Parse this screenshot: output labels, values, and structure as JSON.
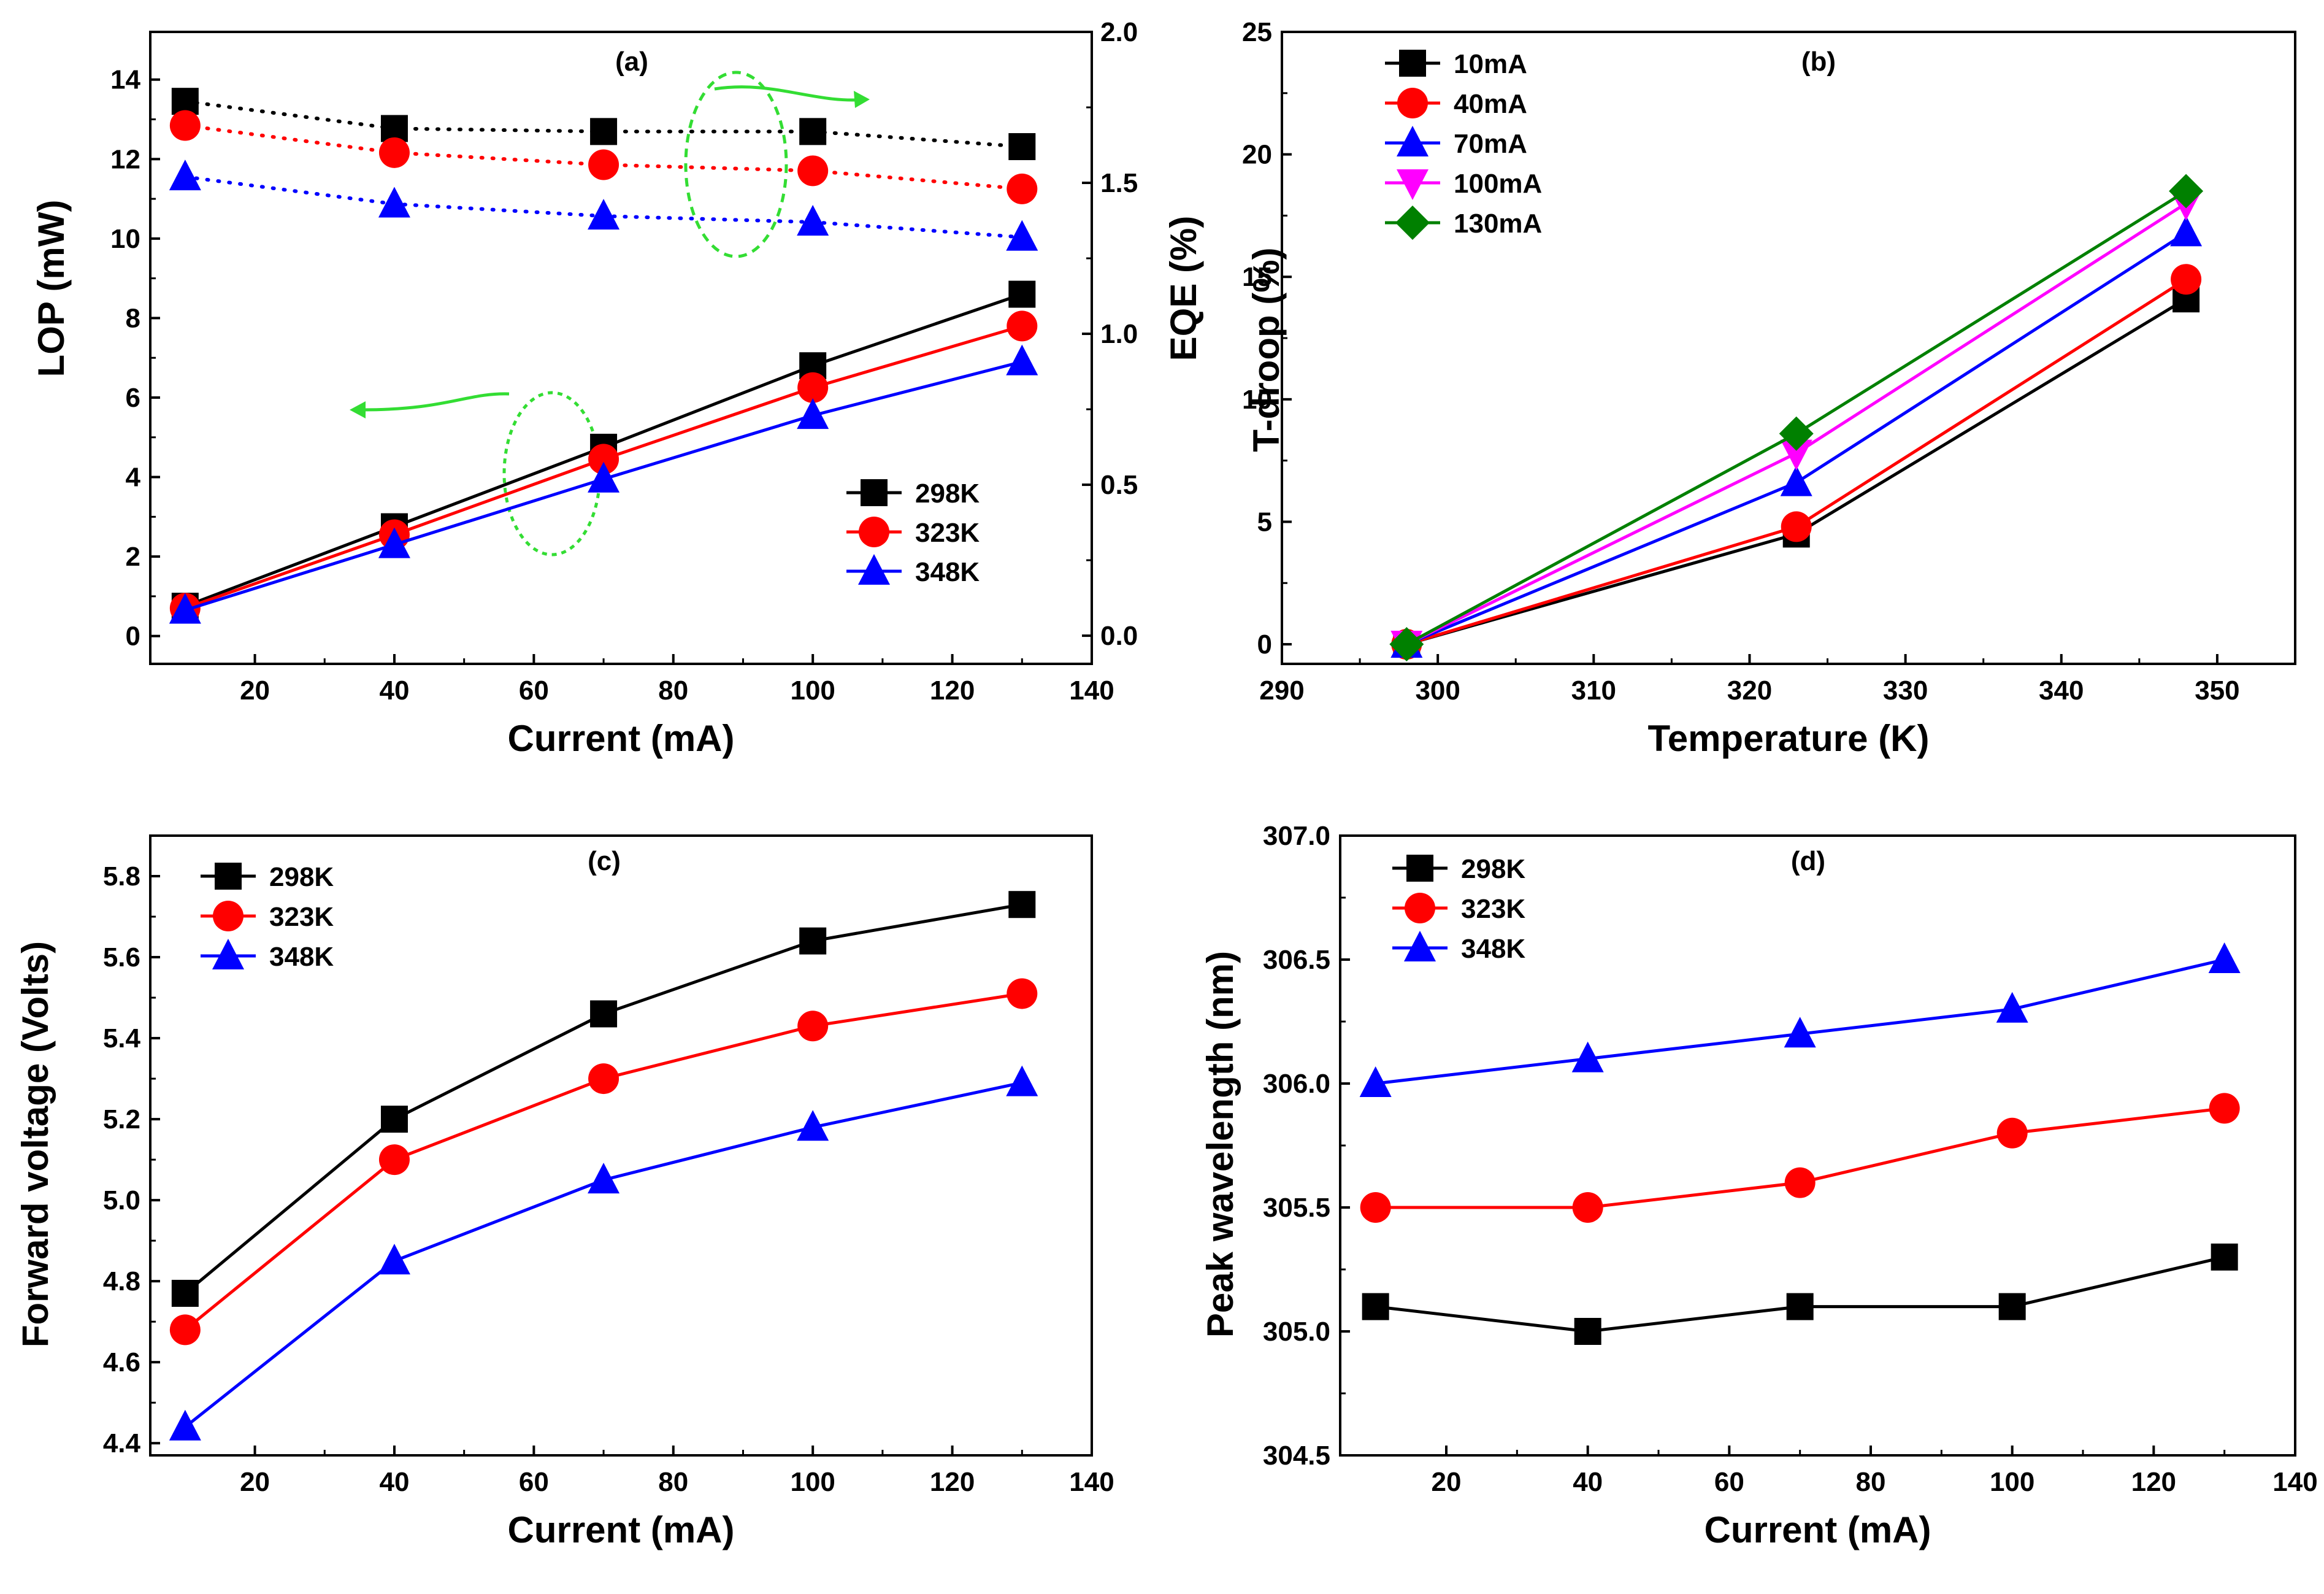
{
  "chart_data": [
    {
      "id": "a",
      "type": "line",
      "panel_label": "(a)",
      "xlabel": "Current (mA)",
      "ylabel": "LOP (mW)",
      "y2label": "EQE (%)",
      "xlim": [
        5,
        140
      ],
      "ylim": [
        -0.7,
        15.2
      ],
      "y2lim": [
        -0.0933,
        2.0
      ],
      "xticks": [
        20,
        40,
        60,
        80,
        100,
        120,
        140
      ],
      "yticks": [
        0,
        2,
        4,
        6,
        8,
        10,
        12,
        14
      ],
      "y2ticks": [
        0.0,
        0.5,
        1.0,
        1.5,
        2.0
      ],
      "y2tick_labels": [
        "0.0",
        "0.5",
        "1.0",
        "1.5",
        "2.0"
      ],
      "x": [
        10,
        40,
        70,
        100,
        130
      ],
      "series": [
        {
          "name": "298K",
          "axis": "left",
          "style": "solid",
          "color": "#000000",
          "marker": "square",
          "values": [
            0.75,
            2.75,
            4.75,
            6.8,
            8.6
          ]
        },
        {
          "name": "323K",
          "axis": "left",
          "style": "solid",
          "color": "#ff0000",
          "marker": "circle",
          "values": [
            0.7,
            2.55,
            4.45,
            6.25,
            7.8
          ]
        },
        {
          "name": "348K",
          "axis": "left",
          "style": "solid",
          "color": "#0000ff",
          "marker": "triangle",
          "values": [
            0.65,
            2.3,
            3.95,
            5.55,
            6.9
          ]
        },
        {
          "name": "298K",
          "axis": "right",
          "style": "dotted",
          "color": "#000000",
          "marker": "square",
          "values": [
            1.77,
            1.68,
            1.67,
            1.67,
            1.62
          ]
        },
        {
          "name": "323K",
          "axis": "right",
          "style": "dotted",
          "color": "#ff0000",
          "marker": "circle",
          "values": [
            1.69,
            1.6,
            1.56,
            1.54,
            1.48
          ]
        },
        {
          "name": "348K",
          "axis": "right",
          "style": "dotted",
          "color": "#0000ff",
          "marker": "triangle",
          "values": [
            1.52,
            1.43,
            1.39,
            1.37,
            1.32
          ]
        }
      ],
      "legend": [
        "298K",
        "323K",
        "348K"
      ],
      "legend_position": "bottom-right",
      "annotations": "green dotted ellipses with arrows pointing to left axis (LOP) and right axis (EQE)"
    },
    {
      "id": "b",
      "type": "line",
      "panel_label": "(b)",
      "xlabel": "Temperature (K)",
      "ylabel": "T-droop (%)",
      "xlim": [
        290,
        355
      ],
      "ylim": [
        -0.8,
        25
      ],
      "xticks": [
        290,
        300,
        310,
        320,
        330,
        340,
        350
      ],
      "yticks": [
        0,
        5,
        10,
        15,
        20,
        25
      ],
      "x": [
        298,
        323,
        348
      ],
      "series": [
        {
          "name": "10mA",
          "color": "#000000",
          "marker": "square",
          "values": [
            0,
            4.5,
            14.1
          ]
        },
        {
          "name": "40mA",
          "color": "#ff0000",
          "marker": "circle",
          "values": [
            0,
            4.8,
            14.9
          ]
        },
        {
          "name": "70mA",
          "color": "#0000ff",
          "marker": "triangle",
          "values": [
            0,
            6.6,
            16.8
          ]
        },
        {
          "name": "100mA",
          "color": "#ff00ff",
          "marker": "triangle-down",
          "values": [
            0,
            7.8,
            18.0
          ]
        },
        {
          "name": "130mA",
          "color": "#008000",
          "marker": "diamond",
          "values": [
            0,
            8.6,
            18.5
          ]
        }
      ],
      "legend": [
        "10mA",
        "40mA",
        "70mA",
        "100mA",
        "130mA"
      ],
      "legend_position": "top-left"
    },
    {
      "id": "c",
      "type": "line",
      "panel_label": "(c)",
      "xlabel": "Current (mA)",
      "ylabel": "Forward voltage (Volts)",
      "xlim": [
        5,
        140
      ],
      "ylim": [
        4.37,
        5.9
      ],
      "xticks": [
        20,
        40,
        60,
        80,
        100,
        120,
        140
      ],
      "yticks": [
        4.4,
        4.6,
        4.8,
        5.0,
        5.2,
        5.4,
        5.6,
        5.8
      ],
      "ytick_labels": [
        "4.4",
        "4.6",
        "4.8",
        "5.0",
        "5.2",
        "5.4",
        "5.6",
        "5.8"
      ],
      "x": [
        10,
        40,
        70,
        100,
        130
      ],
      "series": [
        {
          "name": "298K",
          "color": "#000000",
          "marker": "square",
          "values": [
            4.77,
            5.2,
            5.46,
            5.64,
            5.73
          ]
        },
        {
          "name": "323K",
          "color": "#ff0000",
          "marker": "circle",
          "values": [
            4.68,
            5.1,
            5.3,
            5.43,
            5.51
          ]
        },
        {
          "name": "348K",
          "color": "#0000ff",
          "marker": "triangle",
          "values": [
            4.44,
            4.85,
            5.05,
            5.18,
            5.29
          ]
        }
      ],
      "legend": [
        "298K",
        "323K",
        "348K"
      ],
      "legend_position": "top-left"
    },
    {
      "id": "d",
      "type": "line",
      "panel_label": "(d)",
      "xlabel": "Current (mA)",
      "ylabel": "Peak wavelength (nm)",
      "xlim": [
        5,
        140
      ],
      "ylim": [
        304.5,
        307.0
      ],
      "xticks": [
        20,
        40,
        60,
        80,
        100,
        120,
        140
      ],
      "yticks": [
        304.5,
        305.0,
        305.5,
        306.0,
        306.5,
        307.0
      ],
      "ytick_labels": [
        "304.5",
        "305.0",
        "305.5",
        "306.0",
        "306.5",
        "307.0"
      ],
      "x": [
        10,
        40,
        70,
        100,
        130
      ],
      "series": [
        {
          "name": "298K",
          "color": "#000000",
          "marker": "square",
          "values": [
            305.1,
            305.0,
            305.1,
            305.1,
            305.3
          ]
        },
        {
          "name": "323K",
          "color": "#ff0000",
          "marker": "circle",
          "values": [
            305.5,
            305.5,
            305.6,
            305.8,
            305.9
          ]
        },
        {
          "name": "348K",
          "color": "#0000ff",
          "marker": "triangle",
          "values": [
            306.0,
            306.1,
            306.2,
            306.3,
            306.5
          ]
        }
      ],
      "legend": [
        "298K",
        "323K",
        "348K"
      ],
      "legend_position": "top-left"
    }
  ]
}
